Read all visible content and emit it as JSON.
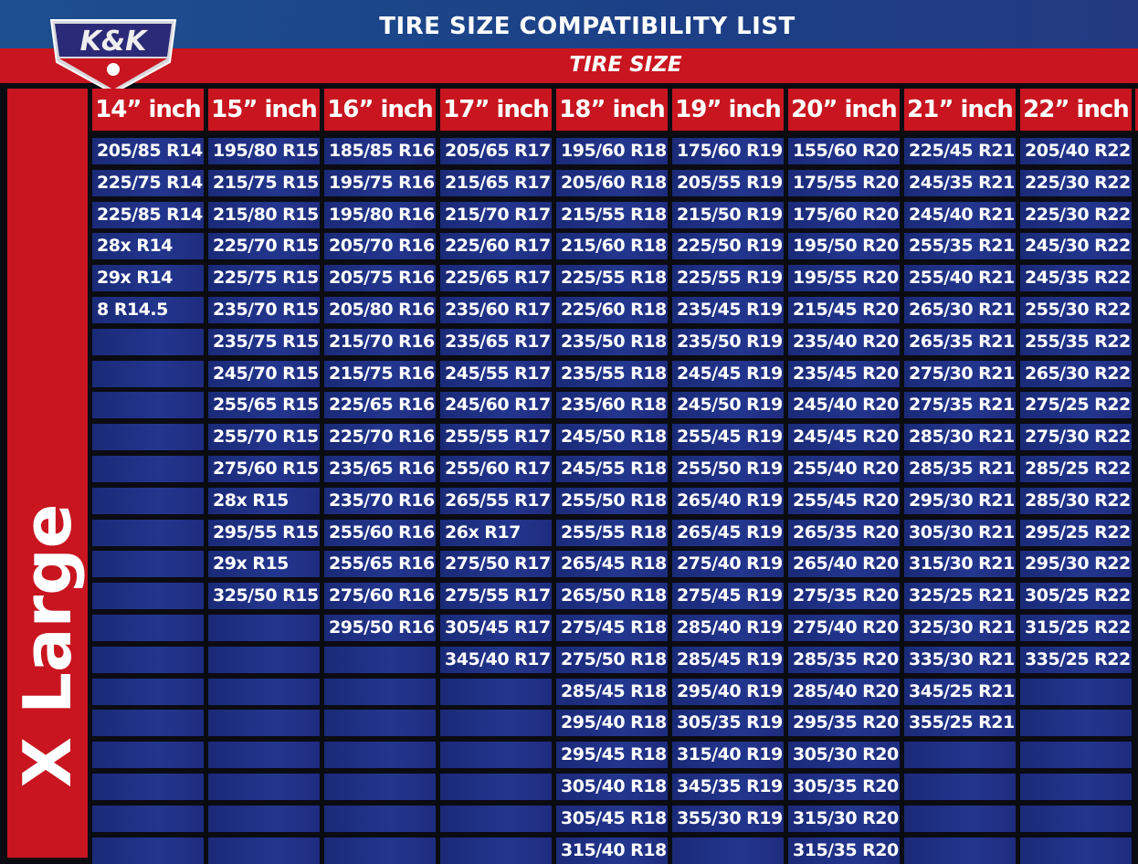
{
  "header": {
    "title": "TIRE SIZE COMPATIBILITY LIST",
    "subtitle": "TIRE SIZE",
    "logo_text": "K&K"
  },
  "category": "X Large",
  "colors": {
    "red": "#c8151f",
    "blue": "#23368e",
    "dark": "#0b0b12"
  },
  "columns": [
    {
      "label": "14” inch",
      "sizes": [
        "205/85 R14",
        "225/75 R14",
        "225/85 R14",
        "28x R14",
        "29x R14",
        "8 R14.5",
        "",
        "",
        "",
        "",
        "",
        "",
        "",
        "",
        "",
        "",
        "",
        "",
        "",
        "",
        "",
        "",
        ""
      ]
    },
    {
      "label": "15” inch",
      "sizes": [
        "195/80 R15",
        "215/75 R15",
        "215/80 R15",
        "225/70 R15",
        "225/75 R15",
        "235/70 R15",
        "235/75 R15",
        "245/70 R15",
        "255/65 R15",
        "255/70 R15",
        "275/60 R15",
        "28x R15",
        "295/55 R15",
        "29x R15",
        "325/50 R15",
        "",
        "",
        "",
        "",
        "",
        "",
        "",
        ""
      ]
    },
    {
      "label": "16” inch",
      "sizes": [
        "185/85 R16",
        "195/75 R16",
        "195/80 R16",
        "205/70 R16",
        "205/75 R16",
        "205/80 R16",
        "215/70 R16",
        "215/75 R16",
        "225/65 R16",
        "225/70 R16",
        "235/65 R16",
        "235/70 R16",
        "255/60 R16",
        "255/65 R16",
        "275/60 R16",
        "295/50 R16",
        "",
        "",
        "",
        "",
        "",
        "",
        ""
      ]
    },
    {
      "label": "17” inch",
      "sizes": [
        "205/65 R17",
        "215/65 R17",
        "215/70 R17",
        "225/60 R17",
        "225/65 R17",
        "235/60 R17",
        "235/65 R17",
        "245/55 R17",
        "245/60 R17",
        "255/55 R17",
        "255/60 R17",
        "265/55 R17",
        "26x R17",
        "275/50 R17",
        "275/55 R17",
        "305/45 R17",
        "345/40 R17",
        "",
        "",
        "",
        "",
        "",
        ""
      ]
    },
    {
      "label": "18” inch",
      "sizes": [
        "195/60 R18",
        "205/60 R18",
        "215/55 R18",
        "215/60 R18",
        "225/55 R18",
        "225/60 R18",
        "235/50 R18",
        "235/55 R18",
        "235/60 R18",
        "245/50 R18",
        "245/55 R18",
        "255/50 R18",
        "255/55 R18",
        "265/45 R18",
        "265/50 R18",
        "275/45 R18",
        "275/50 R18",
        "285/45 R18",
        "295/40 R18",
        "295/45 R18",
        "305/40 R18",
        "305/45 R18",
        "315/40 R18"
      ]
    },
    {
      "label": "19” inch",
      "sizes": [
        "175/60 R19",
        "205/55 R19",
        "215/50 R19",
        "225/50 R19",
        "225/55 R19",
        "235/45 R19",
        "235/50 R19",
        "245/45 R19",
        "245/50 R19",
        "255/45 R19",
        "255/50 R19",
        "265/40 R19",
        "265/45 R19",
        "275/40 R19",
        "275/45 R19",
        "285/40 R19",
        "285/45 R19",
        "295/40 R19",
        "305/35 R19",
        "315/40 R19",
        "345/35 R19",
        "355/30 R19",
        ""
      ]
    },
    {
      "label": "20” inch",
      "sizes": [
        "155/60 R20",
        "175/55 R20",
        "175/60 R20",
        "195/50 R20",
        "195/55 R20",
        "215/45 R20",
        "235/40 R20",
        "235/45 R20",
        "245/40 R20",
        "245/45 R20",
        "255/40 R20",
        "255/45 R20",
        "265/35 R20",
        "265/40 R20",
        "275/35 R20",
        "275/40 R20",
        "285/35 R20",
        "285/40 R20",
        "295/35 R20",
        "305/30 R20",
        "305/35 R20",
        "315/30 R20",
        "315/35 R20"
      ]
    },
    {
      "label": "21” inch",
      "sizes": [
        "225/45 R21",
        "245/35 R21",
        "245/40 R21",
        "255/35 R21",
        "255/40 R21",
        "265/30 R21",
        "265/35 R21",
        "275/30 R21",
        "275/35 R21",
        "285/30 R21",
        "285/35 R21",
        "295/30 R21",
        "305/30 R21",
        "315/30 R21",
        "325/25 R21",
        "325/30 R21",
        "335/30 R21",
        "345/25 R21",
        "355/25 R21",
        "",
        "",
        "",
        ""
      ]
    },
    {
      "label": "22” inch",
      "sizes": [
        "205/40 R22",
        "225/30 R22",
        "225/30 R22",
        "245/30 R22",
        "245/35 R22",
        "255/30 R22",
        "255/35 R22",
        "265/30 R22",
        "275/25 R22",
        "275/30 R22",
        "285/25 R22",
        "285/30 R22",
        "295/25 R22",
        "295/30 R22",
        "305/25 R22",
        "315/25 R22",
        "335/25 R22",
        "",
        "",
        "",
        "",
        "",
        ""
      ]
    }
  ]
}
